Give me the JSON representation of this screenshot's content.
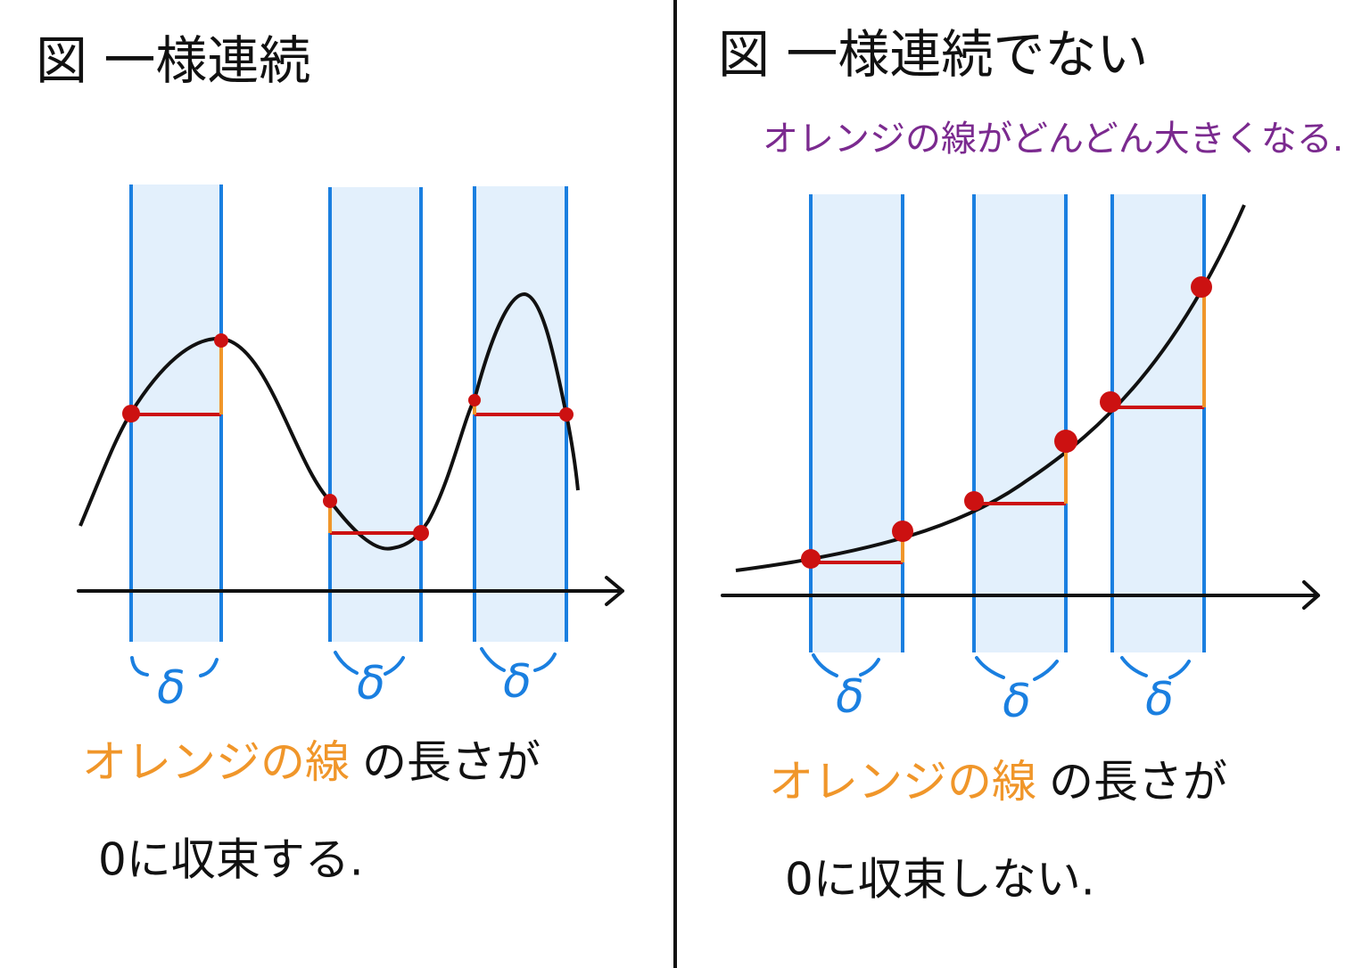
{
  "left": {
    "title": "図 一様連続",
    "delta_labels": [
      "δ",
      "δ",
      "δ"
    ],
    "caption": {
      "orange": "オレンジの線",
      "black": "の長さが"
    },
    "conclusion": "0に収束する."
  },
  "right": {
    "title": "図 一様連続でない",
    "note": "オレンジの線がどんどん大きくなる.",
    "delta_labels": [
      "δ",
      "δ",
      "δ"
    ],
    "caption": {
      "orange": "オレンジの線",
      "black": "の長さが"
    },
    "conclusion": "0に収束しない."
  }
}
